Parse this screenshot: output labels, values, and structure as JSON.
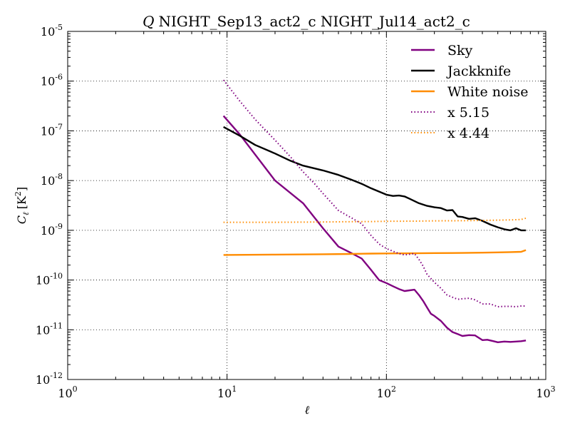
{
  "chart_data": {
    "type": "line",
    "title_prefix": "Q",
    "title": "NIGHT_Sep13_act2_c NIGHT_Jul14_act2_c",
    "xlabel": "ℓ",
    "ylabel": "C",
    "ylabel_sub": "ℓ",
    "ylabel_units": "[K",
    "ylabel_units_sup": "2",
    "ylabel_units_close": "]",
    "xscale": "log",
    "yscale": "log",
    "xlim": [
      1,
      1000
    ],
    "ylim": [
      1e-12,
      1e-05
    ],
    "grid": true,
    "legend_position": "top-right",
    "x_ticks": [
      {
        "value": 1,
        "base": "10",
        "exp": "0"
      },
      {
        "value": 10,
        "base": "10",
        "exp": "1"
      },
      {
        "value": 100,
        "base": "10",
        "exp": "2"
      },
      {
        "value": 1000,
        "base": "10",
        "exp": "3"
      }
    ],
    "y_ticks": [
      {
        "value": 1e-12,
        "base": "10",
        "exp": "-12"
      },
      {
        "value": 1e-11,
        "base": "10",
        "exp": "-11"
      },
      {
        "value": 1e-10,
        "base": "10",
        "exp": "-10"
      },
      {
        "value": 1e-09,
        "base": "10",
        "exp": "-9"
      },
      {
        "value": 1e-08,
        "base": "10",
        "exp": "-8"
      },
      {
        "value": 1e-07,
        "base": "10",
        "exp": "-7"
      },
      {
        "value": 1e-06,
        "base": "10",
        "exp": "-6"
      },
      {
        "value": 1e-05,
        "base": "10",
        "exp": "-5"
      }
    ],
    "series": [
      {
        "name": "Sky",
        "color": "#800080",
        "style": "solid",
        "x": [
          9.5,
          12,
          20,
          30,
          40,
          50,
          60,
          70,
          80,
          90,
          100,
          110,
          120,
          130,
          140,
          150,
          160,
          170,
          180,
          190,
          200,
          220,
          240,
          260,
          280,
          300,
          330,
          360,
          400,
          430,
          470,
          500,
          550,
          600,
          650,
          700,
          750
        ],
        "y": [
          2e-07,
          8.5e-08,
          1e-08,
          3.5e-09,
          1.1e-09,
          4.7e-10,
          3.5e-10,
          2.7e-10,
          1.6e-10,
          1e-10,
          8.7e-11,
          7.5e-11,
          6.6e-11,
          6e-11,
          6.2e-11,
          6.4e-11,
          5e-11,
          3.8e-11,
          2.8e-11,
          2.1e-11,
          1.9e-11,
          1.5e-11,
          1.1e-11,
          9e-12,
          8.2e-12,
          7.5e-12,
          7.8e-12,
          7.7e-12,
          6.2e-12,
          6.3e-12,
          5.9e-12,
          5.6e-12,
          5.8e-12,
          5.7e-12,
          5.8e-12,
          5.9e-12,
          6.1e-12
        ]
      },
      {
        "name": "Jackknife",
        "color": "#000000",
        "style": "solid",
        "x": [
          9.5,
          12,
          15,
          20,
          25,
          30,
          40,
          50,
          60,
          70,
          80,
          90,
          100,
          110,
          120,
          130,
          140,
          160,
          180,
          200,
          220,
          240,
          260,
          280,
          300,
          330,
          360,
          400,
          450,
          500,
          550,
          600,
          650,
          700,
          750
        ],
        "y": [
          1.2e-07,
          8e-08,
          5.2e-08,
          3.5e-08,
          2.5e-08,
          2e-08,
          1.6e-08,
          1.3e-08,
          1.05e-08,
          8.6e-09,
          7e-09,
          6e-09,
          5.2e-09,
          4.9e-09,
          5e-09,
          4.8e-09,
          4.3e-09,
          3.5e-09,
          3.1e-09,
          2.9e-09,
          2.8e-09,
          2.5e-09,
          2.55e-09,
          1.9e-09,
          1.85e-09,
          1.7e-09,
          1.75e-09,
          1.55e-09,
          1.3e-09,
          1.15e-09,
          1.05e-09,
          1e-09,
          1.1e-09,
          1e-09,
          1e-09
        ]
      },
      {
        "name": "White noise",
        "color": "#ff8c00",
        "style": "solid",
        "x": [
          9.5,
          20,
          40,
          60,
          80,
          100,
          150,
          200,
          300,
          400,
          500,
          600,
          700,
          750
        ],
        "y": [
          3.2e-10,
          3.25e-10,
          3.3e-10,
          3.35e-10,
          3.4e-10,
          3.42e-10,
          3.45e-10,
          3.48e-10,
          3.5e-10,
          3.55e-10,
          3.6e-10,
          3.65e-10,
          3.7e-10,
          4e-10
        ]
      },
      {
        "name": "x 5.15",
        "color": "#800080",
        "style": "dotted",
        "x": [
          9.5,
          12,
          15,
          20,
          25,
          30,
          35,
          40,
          50,
          60,
          70,
          80,
          90,
          100,
          110,
          120,
          130,
          140,
          150,
          160,
          170,
          180,
          200,
          220,
          240,
          260,
          280,
          300,
          330,
          360,
          400,
          450,
          500,
          550,
          600,
          650,
          700,
          750
        ],
        "y": [
          1.05e-06,
          4e-07,
          1.7e-07,
          6.5e-08,
          3e-08,
          1.5e-08,
          9e-09,
          5.5e-09,
          2.5e-09,
          1.8e-09,
          1.35e-09,
          7.9e-10,
          5.3e-10,
          4.3e-10,
          3.8e-10,
          3.4e-10,
          3.2e-10,
          3.3e-10,
          3.4e-10,
          2.6e-10,
          1.9e-10,
          1.3e-10,
          9e-11,
          6.8e-11,
          5e-11,
          4.5e-11,
          4.1e-11,
          4.2e-11,
          4.3e-11,
          4e-11,
          3.3e-11,
          3.3e-11,
          2.9e-11,
          2.95e-11,
          2.95e-11,
          2.9e-11,
          3e-11,
          3e-11
        ]
      },
      {
        "name": "x 4.44",
        "color": "#ff8c00",
        "style": "dotted",
        "x": [
          9.5,
          20,
          40,
          60,
          80,
          100,
          150,
          200,
          300,
          400,
          500,
          600,
          700,
          750
        ],
        "y": [
          1.45e-09,
          1.45e-09,
          1.47e-09,
          1.49e-09,
          1.5e-09,
          1.52e-09,
          1.53e-09,
          1.55e-09,
          1.56e-09,
          1.58e-09,
          1.6e-09,
          1.62e-09,
          1.65e-09,
          1.75e-09
        ]
      }
    ]
  }
}
